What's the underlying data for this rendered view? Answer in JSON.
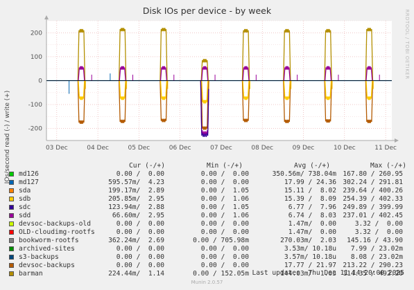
{
  "chart_data": {
    "type": "line",
    "title": "Disk IOs per device - by week",
    "ylabel": "IOs/second read (-) / write (+)",
    "ylim": [
      -250,
      250
    ],
    "yticks": [
      -200,
      -100,
      0,
      100,
      200
    ],
    "x_ticks": [
      "03 Dec",
      "04 Dec",
      "05 Dec",
      "06 Dec",
      "07 Dec",
      "08 Dec",
      "09 Dec",
      "10 Dec",
      "11 Dec"
    ],
    "x_range_days": [
      -0.25,
      8.15
    ],
    "grid": true,
    "legend_position": "bottom",
    "colors": {
      "background": "#f0f0f0",
      "plot_bg": "#ffffff",
      "grid": "#e7a5a5",
      "axis": "#aaaaaa",
      "zero_line": "#000000"
    },
    "series": [
      {
        "name": "md126",
        "color": "#00cc00"
      },
      {
        "name": "md127",
        "color": "#0066b3"
      },
      {
        "name": "sda",
        "color": "#ff8000"
      },
      {
        "name": "sdb",
        "color": "#ffcc00"
      },
      {
        "name": "sdc",
        "color": "#330099"
      },
      {
        "name": "sdd",
        "color": "#990099"
      },
      {
        "name": "devsoc-backups-old",
        "color": "#ccff00"
      },
      {
        "name": "OLD-cloudimg-rootfs",
        "color": "#ff0000"
      },
      {
        "name": "bookworm-rootfs",
        "color": "#808080"
      },
      {
        "name": "archived-sites",
        "color": "#008f00"
      },
      {
        "name": "s3-backups",
        "color": "#00487d"
      },
      {
        "name": "devsoc-backups",
        "color": "#b35a00"
      },
      {
        "name": "barman",
        "color": "#b38f00"
      }
    ],
    "activity_days": [
      0.6,
      1.6,
      2.6,
      3.6,
      4.6,
      5.6,
      6.6,
      7.6
    ],
    "peaks": {
      "barman_write": [
        210,
        215,
        215,
        0,
        85,
        210,
        210,
        210,
        215
      ],
      "barman_read": [
        -175,
        -172,
        -168,
        -235,
        -168,
        -168,
        -172,
        -170,
        -172
      ]
    },
    "series_sketch": [
      {
        "name": "barman",
        "write_peak": 215,
        "read_trough": -175
      },
      {
        "name": "sdd",
        "write_peak": 55,
        "read_trough": -175
      },
      {
        "name": "sdb",
        "write_peak": 55,
        "read_trough": -90
      },
      {
        "name": "sdc",
        "write_peak": 50,
        "read_trough": -220
      }
    ]
  },
  "legend": {
    "headers": {
      "cur": "Cur (-/+)",
      "min": "Min (-/+)",
      "avg": "Avg (-/+)",
      "max": "Max (-/+)"
    },
    "rows": [
      {
        "name": "md126",
        "cur": "0.00 /  0.00",
        "min": "0.00 /  0.00",
        "avg": "350.56m/ 738.04m",
        "max": "167.80 / 260.95"
      },
      {
        "name": "md127",
        "cur": "595.57m/  4.23",
        "min": "0.00 /  0.00",
        "avg": "17.99 / 24.36",
        "max": "302.24 / 291.81"
      },
      {
        "name": "sda",
        "cur": "199.17m/  2.89",
        "min": "0.00 /  1.05",
        "avg": "15.11 /  8.02",
        "max": "239.64 / 400.26"
      },
      {
        "name": "sdb",
        "cur": "205.85m/  2.95",
        "min": "0.00 /  1.06",
        "avg": "15.39 /  8.09",
        "max": "254.39 / 402.33"
      },
      {
        "name": "sdc",
        "cur": "123.94m/  2.88",
        "min": "0.00 /  1.05",
        "avg": "6.77 /  7.96",
        "max": "249.89 / 399.99"
      },
      {
        "name": "sdd",
        "cur": "66.60m/  2.95",
        "min": "0.00 /  1.06",
        "avg": "6.74 /  8.03",
        "max": "237.01 / 402.45"
      },
      {
        "name": "devsoc-backups-old",
        "cur": "0.00 /  0.00",
        "min": "0.00 /  0.00",
        "avg": "1.47m/  0.00",
        "max": "3.32 /  0.00"
      },
      {
        "name": "OLD-cloudimg-rootfs",
        "cur": "0.00 /  0.00",
        "min": "0.00 /  0.00",
        "avg": "1.47m/  0.00",
        "max": "3.32 /  0.00"
      },
      {
        "name": "bookworm-rootfs",
        "cur": "362.24m/  2.69",
        "min": "0.00 / 705.98m",
        "avg": "270.03m/  2.03",
        "max": "145.16 / 43.90"
      },
      {
        "name": "archived-sites",
        "cur": "0.00 /  0.00",
        "min": "0.00 /  0.00",
        "avg": "3.53m/ 10.18u",
        "max": "7.99 / 23.02m"
      },
      {
        "name": "s3-backups",
        "cur": "0.00 /  0.00",
        "min": "0.00 /  0.00",
        "avg": "3.57m/ 10.18u",
        "max": "8.08 / 23.02m"
      },
      {
        "name": "devsoc-backups",
        "cur": "0.00 /  0.00",
        "min": "0.00 /  0.00",
        "avg": "17.77 / 21.97",
        "max": "213.22 / 290.23"
      },
      {
        "name": "barman",
        "cur": "224.44m/  1.14",
        "min": "0.00 / 152.05m",
        "avg": "144.03m/  1.03",
        "max": "114.35 / 492.20"
      }
    ]
  },
  "footer": {
    "last_update": "Last update:  Thu Dec 11 14:20:00 2025",
    "munin": "Munin 2.0.57"
  },
  "watermark": "RRDTOOL / TOBI OETIKER"
}
